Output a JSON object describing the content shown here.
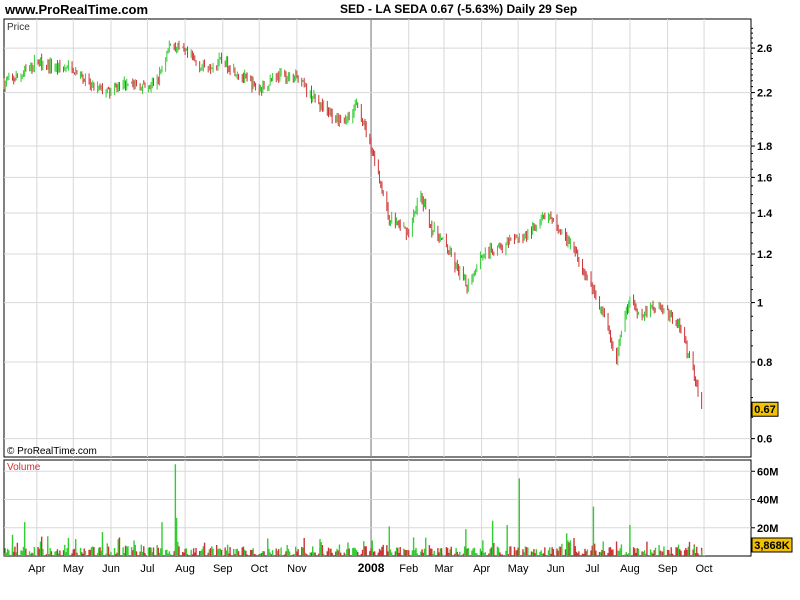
{
  "header": {
    "site": "www.ProRealTime.com",
    "symbol_line": "SED - LA SEDA    0.67 (-5.63%)    Daily  29 Sep"
  },
  "price_panel": {
    "label": "Price",
    "watermark": "© ProRealTime.com"
  },
  "volume_panel": {
    "label": "Volume"
  },
  "colors": {
    "up": "#33cc33",
    "down": "#cc3333",
    "badge": "#f2c200",
    "grid": "#d8d8d8",
    "year_line": "#888888"
  },
  "chart_data": [
    {
      "type": "line",
      "title": "SED - LA SEDA",
      "subtitle": "0.67 (-5.63%) Daily 29 Sep",
      "ylabel": "Price",
      "yscale": "log",
      "ylim": [
        0.56,
        2.9
      ],
      "y_ticks": [
        "2.6",
        "2.2",
        "1.8",
        "1.6",
        "1.4",
        "1.2",
        "1",
        "0.8",
        "0.6"
      ],
      "y_tick_values": [
        2.6,
        2.2,
        1.8,
        1.6,
        1.4,
        1.2,
        1.0,
        0.8,
        0.6
      ],
      "last_value_label": "0.67",
      "last_value": 0.67,
      "x_ticks": [
        "Apr",
        "May",
        "Jun",
        "Jul",
        "Aug",
        "Sep",
        "Oct",
        "Nov",
        "2008",
        "Feb",
        "Mar",
        "Apr",
        "May",
        "Jun",
        "Jul",
        "Aug",
        "Sep",
        "Oct"
      ],
      "x_tick_dates": [
        "2007-04-01",
        "2007-05-01",
        "2007-06-01",
        "2007-07-01",
        "2007-08-01",
        "2007-09-01",
        "2007-10-01",
        "2007-11-01",
        "2008-01-01",
        "2008-02-01",
        "2008-03-01",
        "2008-04-01",
        "2008-05-01",
        "2008-06-01",
        "2008-07-01",
        "2008-08-01",
        "2008-09-01",
        "2008-10-01"
      ],
      "x_range": [
        "2007-03-05",
        "2008-10-10"
      ],
      "grid": true,
      "series": [
        {
          "values_anchor": [
            [
              "2007-03-05",
              2.28
            ],
            [
              "2007-03-20",
              2.35
            ],
            [
              "2007-04-01",
              2.48
            ],
            [
              "2007-04-15",
              2.42
            ],
            [
              "2007-05-01",
              2.4
            ],
            [
              "2007-05-15",
              2.25
            ],
            [
              "2007-06-01",
              2.2
            ],
            [
              "2007-06-15",
              2.3
            ],
            [
              "2007-07-01",
              2.22
            ],
            [
              "2007-07-10",
              2.32
            ],
            [
              "2007-07-20",
              2.65
            ],
            [
              "2007-08-01",
              2.55
            ],
            [
              "2007-08-15",
              2.42
            ],
            [
              "2007-09-01",
              2.48
            ],
            [
              "2007-09-15",
              2.35
            ],
            [
              "2007-10-01",
              2.22
            ],
            [
              "2007-10-15",
              2.35
            ],
            [
              "2007-11-01",
              2.32
            ],
            [
              "2007-11-15",
              2.15
            ],
            [
              "2007-12-01",
              2.0
            ],
            [
              "2007-12-10",
              1.98
            ],
            [
              "2007-12-20",
              2.1
            ],
            [
              "2008-01-01",
              1.8
            ],
            [
              "2008-01-15",
              1.38
            ],
            [
              "2008-02-01",
              1.3
            ],
            [
              "2008-02-10",
              1.5
            ],
            [
              "2008-02-20",
              1.32
            ],
            [
              "2008-03-01",
              1.25
            ],
            [
              "2008-03-10",
              1.15
            ],
            [
              "2008-03-20",
              1.06
            ],
            [
              "2008-04-01",
              1.2
            ],
            [
              "2008-04-15",
              1.22
            ],
            [
              "2008-05-01",
              1.27
            ],
            [
              "2008-05-15",
              1.32
            ],
            [
              "2008-05-25",
              1.39
            ],
            [
              "2008-06-10",
              1.27
            ],
            [
              "2008-06-25",
              1.12
            ],
            [
              "2008-07-10",
              0.96
            ],
            [
              "2008-07-20",
              0.8
            ],
            [
              "2008-08-01",
              1.02
            ],
            [
              "2008-08-10",
              0.95
            ],
            [
              "2008-08-25",
              1.0
            ],
            [
              "2008-09-10",
              0.92
            ],
            [
              "2008-09-20",
              0.8
            ],
            [
              "2008-09-29",
              0.67
            ]
          ]
        }
      ]
    },
    {
      "type": "bar",
      "title": "",
      "ylabel": "Volume",
      "ylim": [
        0,
        68
      ],
      "y_unit": "M",
      "y_ticks": [
        "60M",
        "40M",
        "20M"
      ],
      "y_tick_values": [
        60,
        40,
        20
      ],
      "last_value_label": "3,868K",
      "last_value": 3.868,
      "spikes": [
        [
          "2007-03-12",
          15
        ],
        [
          "2007-03-22",
          24
        ],
        [
          "2007-04-10",
          14
        ],
        [
          "2007-05-03",
          12
        ],
        [
          "2007-05-25",
          17
        ],
        [
          "2007-06-20",
          11
        ],
        [
          "2007-07-13",
          24
        ],
        [
          "2007-07-24",
          65
        ],
        [
          "2007-07-25",
          27
        ],
        [
          "2007-09-05",
          8
        ],
        [
          "2007-11-20",
          12
        ],
        [
          "2008-01-02",
          11
        ],
        [
          "2008-01-16",
          21
        ],
        [
          "2008-02-15",
          13
        ],
        [
          "2008-03-19",
          19
        ],
        [
          "2008-04-10",
          25
        ],
        [
          "2008-04-22",
          22
        ],
        [
          "2008-05-02",
          55
        ],
        [
          "2008-06-10",
          16
        ],
        [
          "2008-07-02",
          35
        ],
        [
          "2008-08-01",
          22
        ],
        [
          "2008-09-23",
          7
        ],
        [
          "2008-09-29",
          3.868
        ]
      ]
    }
  ]
}
